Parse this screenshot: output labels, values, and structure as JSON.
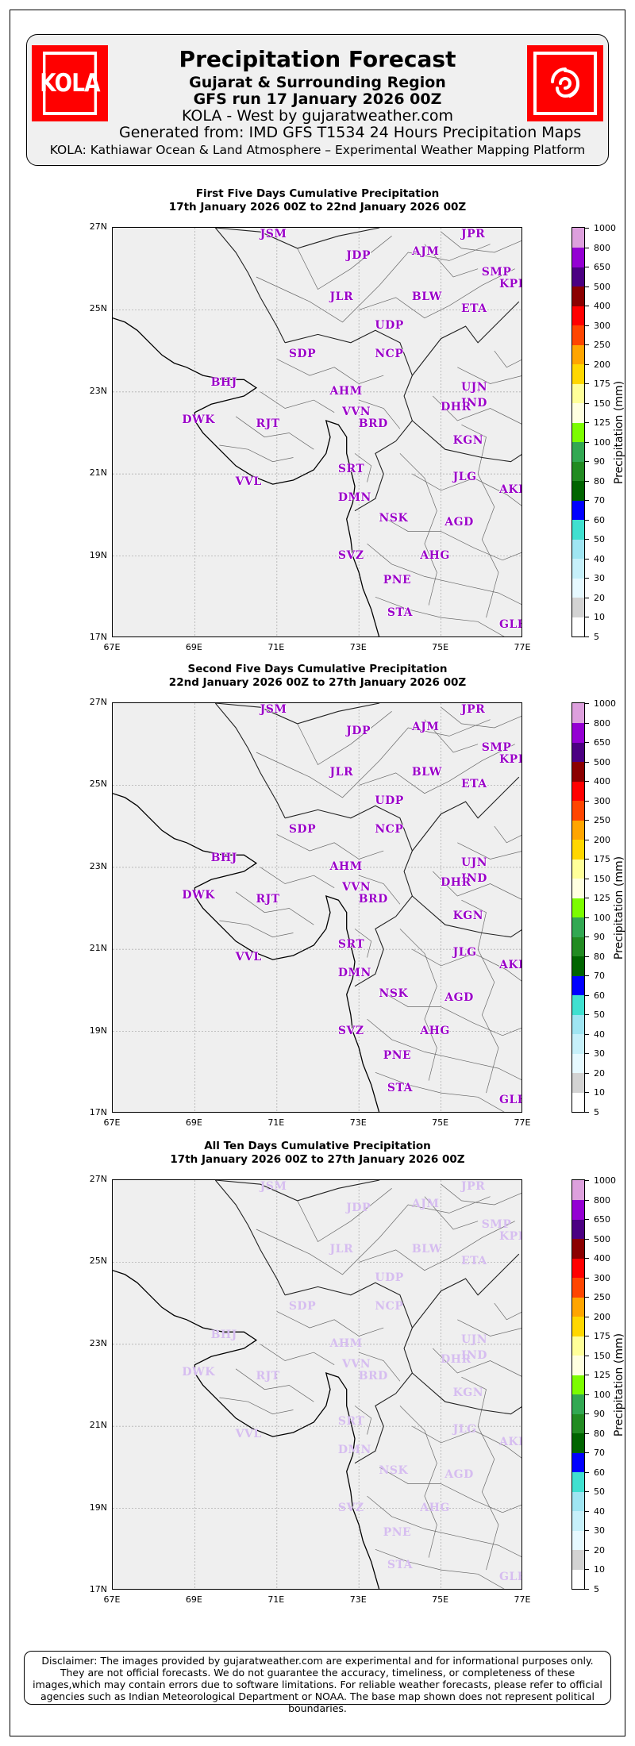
{
  "header": {
    "title": "Precipitation Forecast",
    "region": "Gujarat & Surrounding Region",
    "run": "GFS run 17 January 2026 00Z",
    "site": "KOLA - West by gujaratweather.com",
    "generated": "Generated from: IMD GFS T1534 24 Hours Precipitation Maps",
    "platform": "KOLA: Kathiawar Ocean & Land Atmosphere – Experimental Weather Mapping Platform",
    "logo_left_text": "KOLA",
    "logo_right_icon": "cyclone-icon",
    "logo_color": "#ff0000"
  },
  "panels": [
    {
      "title": "First Five Days Cumulative Precipitation",
      "period": "17th January 2026 00Z to 22nd January 2026 00Z",
      "city_style": "strong"
    },
    {
      "title": "Second Five Days Cumulative Precipitation",
      "period": "22nd January 2026 00Z to 27th January 2026 00Z",
      "city_style": "strong"
    },
    {
      "title": "All Ten Days Cumulative Precipitation",
      "period": "17th January 2026 00Z to 27th January 2026 00Z",
      "city_style": "faint"
    }
  ],
  "axes": {
    "y_ticks": [
      "27N",
      "25N",
      "23N",
      "21N",
      "19N",
      "17N"
    ],
    "x_ticks": [
      "67E",
      "69E",
      "71E",
      "73E",
      "75E",
      "77E"
    ]
  },
  "cities": [
    {
      "code": "JSM",
      "lon": 70.9,
      "lat": 26.9
    },
    {
      "code": "JDP",
      "lon": 73.0,
      "lat": 26.3
    },
    {
      "code": "AJM",
      "lon": 74.6,
      "lat": 26.4
    },
    {
      "code": "JPR",
      "lon": 75.8,
      "lat": 26.9
    },
    {
      "code": "SMP",
      "lon": 76.3,
      "lat": 25.9
    },
    {
      "code": "KPE",
      "lon": 76.8,
      "lat": 25.6
    },
    {
      "code": "JLR",
      "lon": 72.6,
      "lat": 25.3
    },
    {
      "code": "BLW",
      "lon": 74.6,
      "lat": 25.3
    },
    {
      "code": "ETA",
      "lon": 75.8,
      "lat": 25.0
    },
    {
      "code": "UDP",
      "lon": 73.7,
      "lat": 24.6
    },
    {
      "code": "SDP",
      "lon": 71.6,
      "lat": 23.9
    },
    {
      "code": "NCP",
      "lon": 73.7,
      "lat": 23.9
    },
    {
      "code": "BHJ",
      "lon": 69.7,
      "lat": 23.2
    },
    {
      "code": "AHM",
      "lon": 72.6,
      "lat": 23.0
    },
    {
      "code": "UJN",
      "lon": 75.8,
      "lat": 23.1
    },
    {
      "code": "IND",
      "lon": 75.8,
      "lat": 22.7
    },
    {
      "code": "VVN",
      "lon": 72.9,
      "lat": 22.5
    },
    {
      "code": "BRD",
      "lon": 73.3,
      "lat": 22.2
    },
    {
      "code": "DHR",
      "lon": 75.3,
      "lat": 22.6
    },
    {
      "code": "DWK",
      "lon": 69.0,
      "lat": 22.3
    },
    {
      "code": "RJT",
      "lon": 70.8,
      "lat": 22.2
    },
    {
      "code": "KGN",
      "lon": 75.6,
      "lat": 21.8
    },
    {
      "code": "SRT",
      "lon": 72.8,
      "lat": 21.1
    },
    {
      "code": "VVL",
      "lon": 70.3,
      "lat": 20.8
    },
    {
      "code": "JLG",
      "lon": 75.6,
      "lat": 20.9
    },
    {
      "code": "AKL",
      "lon": 77.0,
      "lat": 20.6
    },
    {
      "code": "DMN",
      "lon": 72.8,
      "lat": 20.4
    },
    {
      "code": "NSK",
      "lon": 73.8,
      "lat": 19.9
    },
    {
      "code": "AGD",
      "lon": 75.4,
      "lat": 19.8
    },
    {
      "code": "SVZ",
      "lon": 72.8,
      "lat": 19.0
    },
    {
      "code": "AHG",
      "lon": 74.8,
      "lat": 19.0
    },
    {
      "code": "PNE",
      "lon": 73.9,
      "lat": 18.4
    },
    {
      "code": "STA",
      "lon": 74.0,
      "lat": 17.6
    },
    {
      "code": "GLB",
      "lon": 76.8,
      "lat": 17.3
    }
  ],
  "colorbar": {
    "label": "Precipitation (mm)",
    "levels": [
      "5",
      "10",
      "20",
      "30",
      "40",
      "50",
      "60",
      "70",
      "80",
      "90",
      "100",
      "125",
      "150",
      "175",
      "200",
      "250",
      "300",
      "400",
      "500",
      "650",
      "800",
      "1000"
    ],
    "colors": [
      "#ffffff",
      "#d3d3d3",
      "#e6f9ff",
      "#c6f0fa",
      "#9fe5f2",
      "#40e0d0",
      "#0000ff",
      "#006400",
      "#228b22",
      "#32a852",
      "#7cfc00",
      "#ffffe0",
      "#ffff99",
      "#ffd700",
      "#ffa500",
      "#ff4500",
      "#ff0000",
      "#8b0000",
      "#4b0082",
      "#9400d3",
      "#dda0dd",
      "#e6ccf2"
    ]
  },
  "disclaimer": "Disclaimer: The images provided by gujaratweather.com are experimental and for informational purposes only. They are not official forecasts. We do not guarantee the accuracy, timeliness, or completeness of these images,which may contain errors due to software limitations. For reliable weather forecasts, please refer to official agencies such as Indian Meteorological Department or NOAA. The base map shown does not represent political boundaries."
}
